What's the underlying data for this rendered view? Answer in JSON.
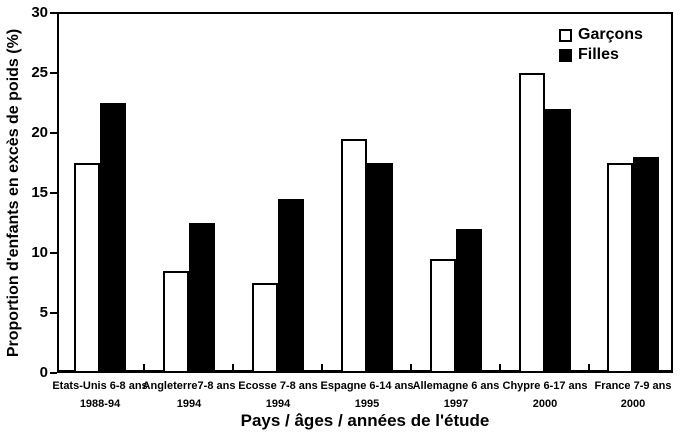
{
  "chart_data": {
    "type": "bar",
    "ylabel": "Proportion d'enfants en excès de poids (%)",
    "xlabel": "Pays / âges / années de l'étude",
    "ylim": [
      0,
      30
    ],
    "yticks": [
      0,
      5,
      10,
      15,
      20,
      25,
      30
    ],
    "grid": false,
    "legend_position": "top-right-inside",
    "frame": "full-box",
    "colors": {
      "garcons_fill": "#ffffff",
      "filles_fill": "#000000",
      "outline": "#000000"
    },
    "categories": [
      {
        "line1": "Etats-Unis 6-8 ans",
        "line2": "1988-94"
      },
      {
        "line1": "Angleterre7-8 ans",
        "line2": "1994"
      },
      {
        "line1": "Ecosse 7-8 ans",
        "line2": "1994"
      },
      {
        "line1": "Espagne 6-14 ans",
        "line2": "1995"
      },
      {
        "line1": "Allemagne 6 ans",
        "line2": "1997"
      },
      {
        "line1": "Chypre 6-17 ans",
        "line2": "2000"
      },
      {
        "line1": "France 7-9 ans",
        "line2": "2000"
      }
    ],
    "series": [
      {
        "name": "Garçons",
        "fill": "open",
        "values": [
          17.5,
          8.5,
          7.5,
          19.5,
          9.5,
          25.0,
          17.5
        ]
      },
      {
        "name": "Filles",
        "fill": "solid",
        "values": [
          22.5,
          12.5,
          14.5,
          17.5,
          12.0,
          22.0,
          18.0
        ]
      }
    ]
  }
}
